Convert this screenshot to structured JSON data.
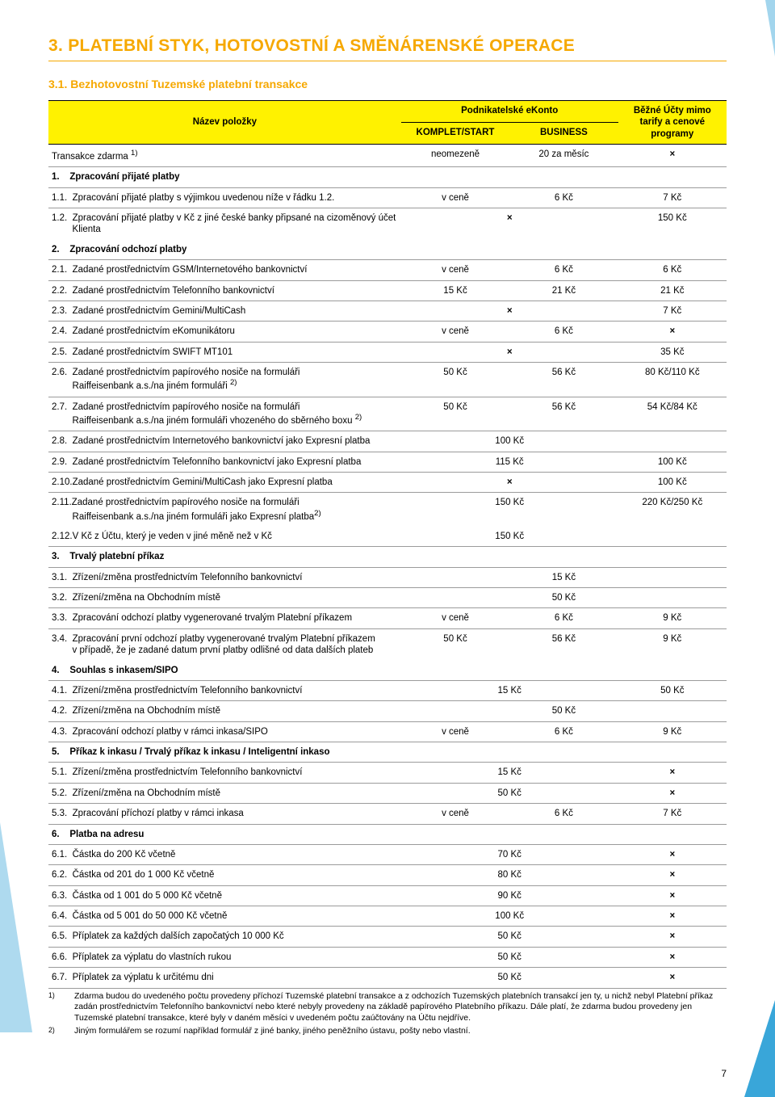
{
  "page_number": "7",
  "colors": {
    "accent": "#f6a800",
    "header_bg": "#fff200",
    "border": "#9b9b9b",
    "text": "#000000",
    "decor": "#1696d2"
  },
  "title": "3. PLATEBNÍ STYK, HOTOVOSTNÍ A SMĚNÁRENSKÉ OPERACE",
  "subtitle": "3.1. Bezhotovostní Tuzemské platební transakce",
  "table": {
    "header": {
      "name": "Název položky",
      "group": "Podnikatelské eKonto",
      "col2": "KOMPLET/START",
      "col3": "BUSINESS",
      "col4a": "Běžné Účty mimo",
      "col4b": "tarify a cenové",
      "col4c": "programy"
    },
    "rows": [
      {
        "type": "data",
        "name": "Transakce zdarma <sup>1)</sup>",
        "c2": "neomezeně",
        "c3": "20 za měsíc",
        "c4": "×"
      },
      {
        "type": "section",
        "name": "1.&nbsp;&nbsp;&nbsp;&nbsp;Zpracování přijaté platby"
      },
      {
        "type": "data",
        "name": "1.1.&nbsp;&nbsp;Zpracování přijaté platby s výjimkou uvedenou níže v řádku 1.2.",
        "c2": "v ceně",
        "c3": "6 Kč",
        "c4": "7 Kč"
      },
      {
        "type": "data",
        "noborder": true,
        "name": "1.2.&nbsp;&nbsp;Zpracování přijaté platby v Kč z jiné české banky připsané na cizoměnový účet<br>&nbsp;&nbsp;&nbsp;&nbsp;&nbsp;&nbsp;&nbsp;&nbsp;Klienta",
        "c23": "×",
        "c4": "150 Kč"
      },
      {
        "type": "section",
        "name": "2.&nbsp;&nbsp;&nbsp;&nbsp;Zpracování odchozí platby"
      },
      {
        "type": "data",
        "name": "2.1.&nbsp;&nbsp;Zadané prostřednictvím GSM/Internetového bankovnictví",
        "c2": "v ceně",
        "c3": "6 Kč",
        "c4": "6 Kč"
      },
      {
        "type": "data",
        "name": "2.2.&nbsp;&nbsp;Zadané prostřednictvím Telefonního bankovnictví",
        "c2": "15 Kč",
        "c3": "21 Kč",
        "c4": "21 Kč"
      },
      {
        "type": "data",
        "name": "2.3.&nbsp;&nbsp;Zadané prostřednictvím Gemini/MultiCash",
        "c23": "×",
        "c4": "7 Kč"
      },
      {
        "type": "data",
        "name": "2.4.&nbsp;&nbsp;Zadané prostřednictvím eKomunikátoru",
        "c2": "v ceně",
        "c3": "6 Kč",
        "c4": "×"
      },
      {
        "type": "data",
        "name": "2.5.&nbsp;&nbsp;Zadané prostřednictvím SWIFT MT101",
        "c23": "×",
        "c4": "35 Kč"
      },
      {
        "type": "data",
        "name": "2.6.&nbsp;&nbsp;Zadané prostřednictvím papírového nosiče na formuláři<br>&nbsp;&nbsp;&nbsp;&nbsp;&nbsp;&nbsp;&nbsp;&nbsp;Raiffeisenbank a.s./na jiném formuláři <sup>2)</sup>",
        "c2": "50 Kč",
        "c3": "56 Kč",
        "c4": "80 Kč/110 Kč"
      },
      {
        "type": "data",
        "name": "2.7.&nbsp;&nbsp;Zadané prostřednictvím papírového nosiče na formuláři<br>&nbsp;&nbsp;&nbsp;&nbsp;&nbsp;&nbsp;&nbsp;&nbsp;Raiffeisenbank a.s./na jiném formuláři vhozeného do sběrného boxu <sup>2)</sup>",
        "c2": "50 Kč",
        "c3": "56 Kč",
        "c4": "54 Kč/84 Kč"
      },
      {
        "type": "data",
        "name": "2.8.&nbsp;&nbsp;Zadané prostřednictvím Internetového bankovnictví jako Expresní platba",
        "c23": "100 Kč",
        "c4": ""
      },
      {
        "type": "data",
        "name": "2.9.&nbsp;&nbsp;Zadané prostřednictvím Telefonního bankovnictví jako Expresní platba",
        "c23": "115 Kč",
        "c4": "100 Kč"
      },
      {
        "type": "data",
        "name": "2.10.Zadané prostřednictvím Gemini/MultiCash jako Expresní platba",
        "c23": "×",
        "c4": "100 Kč"
      },
      {
        "type": "data",
        "noborder": true,
        "name": "2.11.Zadané prostřednictvím papírového nosiče na formuláři<br>&nbsp;&nbsp;&nbsp;&nbsp;&nbsp;&nbsp;&nbsp;&nbsp;Raiffeisenbank a.s./na jiném formuláři jako Expresní platba<sup>2)</sup>",
        "c23": "150 Kč",
        "c4": "220 Kč/250 Kč"
      },
      {
        "type": "data",
        "name": "2.12.V Kč z Účtu, který je veden v jiné měně než v Kč",
        "c23": "150 Kč",
        "c4": ""
      },
      {
        "type": "section",
        "name": "3.&nbsp;&nbsp;&nbsp;&nbsp;Trvalý platební příkaz"
      },
      {
        "type": "data",
        "name": "3.1.&nbsp;&nbsp;Zřízení/změna prostřednictvím Telefonního bankovnictví",
        "c234": "15 Kč"
      },
      {
        "type": "data",
        "name": "3.2.&nbsp;&nbsp;Zřízení/změna na Obchodním místě",
        "c234": "50 Kč"
      },
      {
        "type": "data",
        "name": "3.3.&nbsp;&nbsp;Zpracování odchozí platby vygenerované trvalým Platební příkazem",
        "c2": "v ceně",
        "c3": "6 Kč",
        "c4": "9 Kč"
      },
      {
        "type": "data",
        "noborder": true,
        "name": "3.4.&nbsp;&nbsp;Zpracování první odchozí platby vygenerované trvalým Platební příkazem<br>&nbsp;&nbsp;&nbsp;&nbsp;&nbsp;&nbsp;&nbsp;&nbsp;v případě, že je zadané datum první platby odlišné od data dalších plateb",
        "c2": "50 Kč",
        "c3": "56 Kč",
        "c4": "9 Kč"
      },
      {
        "type": "section",
        "name": "4.&nbsp;&nbsp;&nbsp;&nbsp;Souhlas s inkasem/SIPO"
      },
      {
        "type": "data",
        "name": "4.1.&nbsp;&nbsp;Zřízení/změna prostřednictvím Telefonního bankovnictví",
        "c23": "15 Kč",
        "c4": "50 Kč"
      },
      {
        "type": "data",
        "name": "4.2.&nbsp;&nbsp;Zřízení/změna na Obchodním místě",
        "c234": "50 Kč"
      },
      {
        "type": "data",
        "name": "4.3.&nbsp;&nbsp;Zpracování odchozí platby v rámci inkasa/SIPO",
        "c2": "v ceně",
        "c3": "6 Kč",
        "c4": "9 Kč"
      },
      {
        "type": "section",
        "name": "5.&nbsp;&nbsp;&nbsp;&nbsp;Příkaz k inkasu / Trvalý příkaz k inkasu / Inteligentní inkaso"
      },
      {
        "type": "data",
        "name": "5.1.&nbsp;&nbsp;Zřízení/změna prostřednictvím Telefonního bankovnictví",
        "c23": "15 Kč",
        "c4": "×"
      },
      {
        "type": "data",
        "name": "5.2.&nbsp;&nbsp;Zřízení/změna na Obchodním místě",
        "c23": "50 Kč",
        "c4": "×"
      },
      {
        "type": "data",
        "name": "5.3.&nbsp;&nbsp;Zpracování příchozí platby v rámci inkasa",
        "c2": "v ceně",
        "c3": "6 Kč",
        "c4": "7 Kč"
      },
      {
        "type": "section",
        "name": "6.&nbsp;&nbsp;&nbsp;&nbsp;Platba na adresu"
      },
      {
        "type": "data",
        "name": "6.1.&nbsp;&nbsp;Částka do 200 Kč včetně",
        "c23": "70 Kč",
        "c4": "×"
      },
      {
        "type": "data",
        "name": "6.2.&nbsp;&nbsp;Částka od 201 do 1 000 Kč včetně",
        "c23": "80 Kč",
        "c4": "×"
      },
      {
        "type": "data",
        "name": "6.3.&nbsp;&nbsp;Částka od 1 001 do 5 000 Kč včetně",
        "c23": "90 Kč",
        "c4": "×"
      },
      {
        "type": "data",
        "name": "6.4.&nbsp;&nbsp;Částka od 5 001 do 50 000 Kč včetně",
        "c23": "100 Kč",
        "c4": "×"
      },
      {
        "type": "data",
        "name": "6.5.&nbsp;&nbsp;Příplatek za každých dalších započatých 10 000 Kč",
        "c23": "50 Kč",
        "c4": "×"
      },
      {
        "type": "data",
        "name": "6.6.&nbsp;&nbsp;Příplatek za výplatu do vlastních rukou",
        "c23": "50 Kč",
        "c4": "×"
      },
      {
        "type": "data",
        "name": "6.7.&nbsp;&nbsp;Příplatek za výplatu k určitému dni",
        "c23": "50 Kč",
        "c4": "×"
      }
    ]
  },
  "footnotes": [
    {
      "mark": "1)",
      "text": "Zdarma budou do uvedeného počtu provedeny příchozí Tuzemské platební transakce a z odchozích Tuzemských platebních transakcí jen ty, u nichž nebyl Platební příkaz zadán prostřednictvím Telefonního bankovnictví nebo které nebyly provedeny na základě papírového Platebního příkazu. Dále platí, že zdarma budou provedeny jen Tuzemské platební transakce, které byly v daném měsíci v uvedeném počtu zaúčtovány na Účtu nejdříve."
    },
    {
      "mark": "2)",
      "text": "Jiným formulářem se rozumí například formulář z jiné banky, jiného peněžního ústavu, pošty nebo vlastní."
    }
  ]
}
